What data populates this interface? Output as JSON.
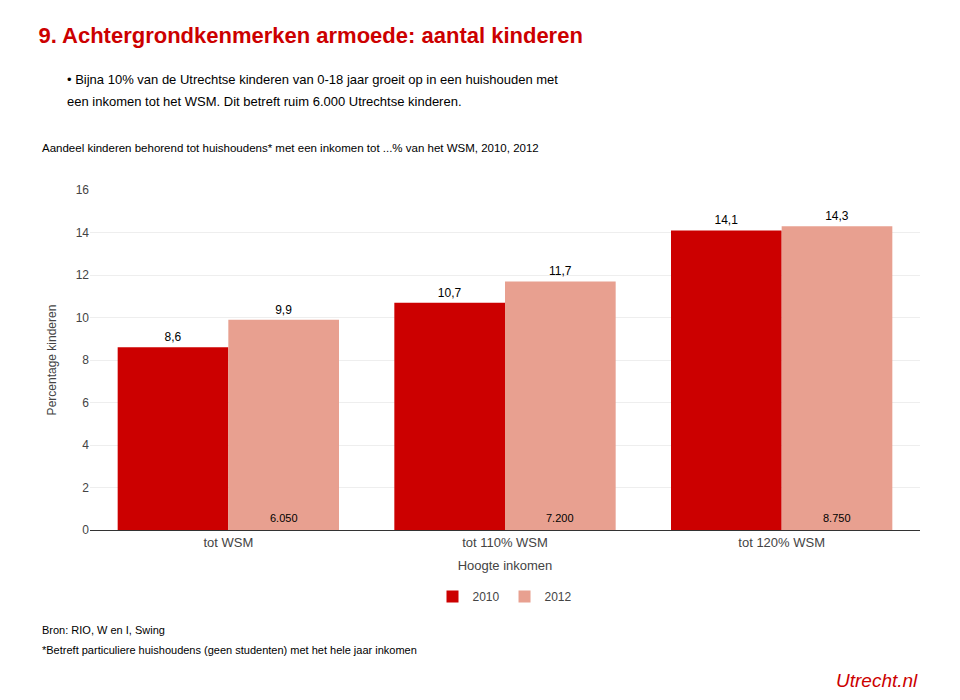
{
  "chart_data": {
    "type": "bar",
    "title": "9. Achtergrondkenmerken armoede: aantal kinderen",
    "subtitle": [
      "• Bijna 10% van de Utrechtse kinderen van 0-18 jaar groeit op in een huishouden met",
      "een inkomen tot het WSM. Dit betreft ruim 6.000 Utrechtse kinderen."
    ],
    "annotations": [
      "Aandeel kinderen behorend tot huishoudens* met een inkomen tot ...% van het WSM, 2010, 2012",
      "Bron: RIO, W en I, Swing",
      "*Betreft particuliere huishoudens (geen studenten) met het hele jaar inkomen",
      "Utrecht.nl"
    ],
    "xlabel": "Hoogte inkomen",
    "ylabel": "Percentage kinderen",
    "categories": [
      "tot WSM",
      "tot 110% WSM",
      "tot 120% WSM"
    ],
    "series": [
      {
        "name": "2010",
        "color": "#cc0000",
        "values": [
          8.6,
          10.7,
          14.1
        ],
        "value_labels": [
          "8,6",
          "10,7",
          "14,1"
        ]
      },
      {
        "name": "2012",
        "color": "#e8a090",
        "values": [
          9.9,
          11.7,
          14.3
        ],
        "value_labels": [
          "9,9",
          "11,7",
          "14,3"
        ],
        "base_labels": [
          "6.050",
          "7.200",
          "8.750"
        ]
      }
    ],
    "ylim": [
      0,
      16
    ],
    "yticks": [
      0,
      2,
      4,
      6,
      8,
      10,
      12,
      14,
      16
    ],
    "grid": true,
    "legend": "bottom",
    "data_labels": true
  }
}
